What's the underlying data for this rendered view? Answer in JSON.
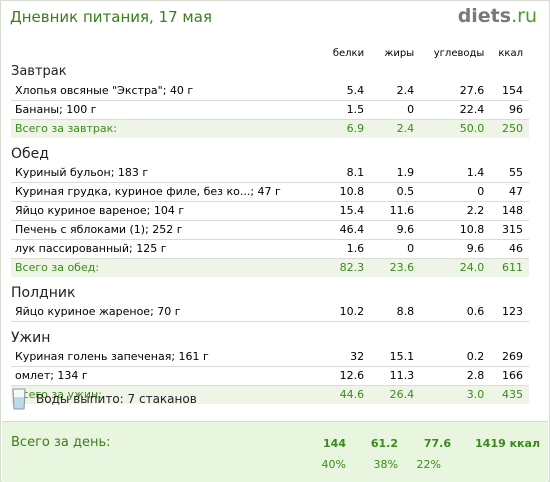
{
  "title": "Дневник питания, 17 мая",
  "logo": {
    "main": "diets",
    "tld": ".ru"
  },
  "headers": {
    "protein": "белки",
    "fat": "жиры",
    "carbs": "углеводы",
    "kcal": "ккал"
  },
  "meals": [
    {
      "name": "Завтрак",
      "items": [
        {
          "name": "Хлопья овсяные \"Экстра\"; 40 г",
          "protein": "5.4",
          "fat": "2.4",
          "carbs": "27.6",
          "kcal": "154"
        },
        {
          "name": "Бананы; 100 г",
          "protein": "1.5",
          "fat": "0",
          "carbs": "22.4",
          "kcal": "96"
        }
      ],
      "total": {
        "label": "Всего за завтрак:",
        "protein": "6.9",
        "fat": "2.4",
        "carbs": "50.0",
        "kcal": "250"
      }
    },
    {
      "name": "Обед",
      "items": [
        {
          "name": "Куриный бульон; 183 г",
          "protein": "8.1",
          "fat": "1.9",
          "carbs": "1.4",
          "kcal": "55"
        },
        {
          "name": "Куриная грудка, куриное филе, без ко...; 47 г",
          "protein": "10.8",
          "fat": "0.5",
          "carbs": "0",
          "kcal": "47"
        },
        {
          "name": "Яйцо куриное вареное; 104 г",
          "protein": "15.4",
          "fat": "11.6",
          "carbs": "2.2",
          "kcal": "148"
        },
        {
          "name": "Печень с яблоками (1); 252 г",
          "protein": "46.4",
          "fat": "9.6",
          "carbs": "10.8",
          "kcal": "315"
        },
        {
          "name": "лук пассированный; 125 г",
          "protein": "1.6",
          "fat": "0",
          "carbs": "9.6",
          "kcal": "46"
        }
      ],
      "total": {
        "label": "Всего за обед:",
        "protein": "82.3",
        "fat": "23.6",
        "carbs": "24.0",
        "kcal": "611"
      }
    },
    {
      "name": "Полдник",
      "items": [
        {
          "name": "Яйцо куриное жареное; 70 г",
          "protein": "10.2",
          "fat": "8.8",
          "carbs": "0.6",
          "kcal": "123"
        }
      ]
    },
    {
      "name": "Ужин",
      "items": [
        {
          "name": "Куриная голень запеченая; 161 г",
          "protein": "32",
          "fat": "15.1",
          "carbs": "0.2",
          "kcal": "269"
        },
        {
          "name": "омлет; 134 г",
          "protein": "12.6",
          "fat": "11.3",
          "carbs": "2.8",
          "kcal": "166"
        }
      ],
      "total": {
        "label": "Всего за ужин:",
        "protein": "44.6",
        "fat": "26.4",
        "carbs": "3.0",
        "kcal": "435"
      }
    }
  ],
  "water": {
    "icon": "water-glass-icon",
    "text": "Воды выпито: 7 стаканов"
  },
  "day": {
    "label": "Всего за день:",
    "protein": "144",
    "fat": "61.2",
    "carbs": "77.6",
    "kcal": "1419 ккал",
    "protein_pct": "40%",
    "fat_pct": "38%",
    "carbs_pct": "22%"
  },
  "colors": {
    "accent": "#3b7d1c",
    "total_bg": "#eef5e6",
    "day_bg": "#e8f5df",
    "row_line": "#d9ddd3"
  }
}
